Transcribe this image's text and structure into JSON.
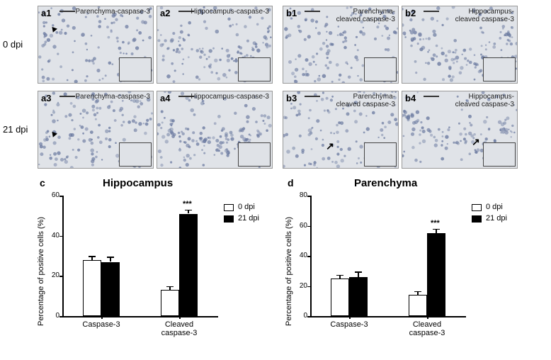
{
  "rows": {
    "top": "0 dpi",
    "bottom": "21 dpi"
  },
  "panels": {
    "a1": {
      "label": "a1",
      "title": "Parenchyma-caspase-3"
    },
    "a2": {
      "label": "a2",
      "title": "Hippocampus-caspase-3"
    },
    "a3": {
      "label": "a3",
      "title": "Parenchyma-caspase-3"
    },
    "a4": {
      "label": "a4",
      "title": "Hippocampus-caspase-3"
    },
    "b1": {
      "label": "b1",
      "title": "Parenchyma-\ncleaved caspase-3"
    },
    "b2": {
      "label": "b2",
      "title": "Hippocampus-\ncleaved caspase-3"
    },
    "b3": {
      "label": "b3",
      "title": "Parenchyma-\ncleaved caspase-3"
    },
    "b4": {
      "label": "b4",
      "title": "Hippocampus-\ncleaved caspase-3"
    }
  },
  "charts": {
    "c": {
      "label": "c",
      "title": "Hippocampus",
      "ylabel": "Percentage of positive cells (%)",
      "ylim": [
        0,
        60
      ],
      "ytick_step": 20,
      "groups": [
        "Caspase-3",
        "Cleaved\ncaspase-3"
      ],
      "series": [
        {
          "name": "0 dpi",
          "color": "#ffffff"
        },
        {
          "name": "21 dpi",
          "color": "#000000"
        }
      ],
      "values": [
        [
          28,
          27
        ],
        [
          13,
          51
        ]
      ],
      "errors": [
        [
          2,
          2.5
        ],
        [
          2,
          2
        ]
      ],
      "sig": [
        null,
        null,
        null,
        "***"
      ]
    },
    "d": {
      "label": "d",
      "title": "Parenchyma",
      "ylabel": "Percentage of positive cells (%)",
      "ylim": [
        0,
        80
      ],
      "ytick_step": 20,
      "groups": [
        "Caspase-3",
        "Cleaved\ncaspase-3"
      ],
      "series": [
        {
          "name": "0 dpi",
          "color": "#ffffff"
        },
        {
          "name": "21 dpi",
          "color": "#000000"
        }
      ],
      "values": [
        [
          25,
          26
        ],
        [
          14,
          55
        ]
      ],
      "errors": [
        [
          2.5,
          3.5
        ],
        [
          2.5,
          3
        ]
      ],
      "sig": [
        null,
        null,
        null,
        "***"
      ]
    }
  },
  "style": {
    "micrograph_bg": "#e0e3e8",
    "cell_color": "#6b7aa0",
    "bar_border": "#000000",
    "axis_color": "#000000",
    "font": "Arial"
  }
}
